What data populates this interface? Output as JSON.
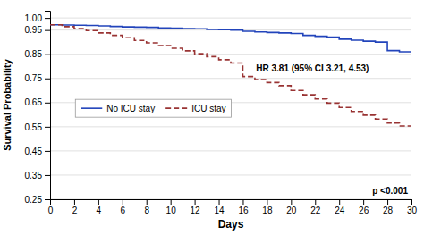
{
  "chart_data": {
    "type": "step",
    "xlabel": "Days",
    "ylabel": "Survival Probability",
    "x": [
      0,
      1,
      2,
      3,
      4,
      5,
      6,
      7,
      8,
      9,
      10,
      11,
      12,
      13,
      14,
      15,
      16,
      17,
      18,
      19,
      20,
      21,
      22,
      23,
      24,
      25,
      26,
      27,
      28,
      29,
      30
    ],
    "series": [
      {
        "name": "No ICU stay",
        "color": "#2244bb",
        "line_style": "solid",
        "values": [
          0.972,
          0.971,
          0.97,
          0.969,
          0.967,
          0.965,
          0.963,
          0.962,
          0.961,
          0.959,
          0.958,
          0.956,
          0.955,
          0.953,
          0.952,
          0.95,
          0.945,
          0.942,
          0.94,
          0.938,
          0.936,
          0.928,
          0.924,
          0.921,
          0.912,
          0.908,
          0.904,
          0.9,
          0.865,
          0.86,
          0.835
        ]
      },
      {
        "name": "ICU stay",
        "color": "#993333",
        "line_style": "dashed",
        "values": [
          0.972,
          0.964,
          0.956,
          0.948,
          0.938,
          0.928,
          0.918,
          0.907,
          0.897,
          0.886,
          0.875,
          0.864,
          0.852,
          0.84,
          0.827,
          0.814,
          0.758,
          0.745,
          0.733,
          0.72,
          0.7,
          0.682,
          0.665,
          0.648,
          0.63,
          0.613,
          0.598,
          0.582,
          0.565,
          0.553,
          0.548
        ]
      }
    ],
    "xlim": [
      0,
      30
    ],
    "ylim": [
      0.25,
      1.03
    ],
    "xticks": [
      0,
      2,
      4,
      6,
      8,
      10,
      12,
      14,
      16,
      18,
      20,
      22,
      24,
      26,
      28,
      30
    ],
    "yticks": [
      0.25,
      0.35,
      0.45,
      0.55,
      0.65,
      0.75,
      0.85,
      0.95,
      {
        "value": 1.0,
        "label": "1.00"
      }
    ],
    "grid": "y",
    "legend": "left",
    "annotations": [
      "HR 3.81 (95% CI 3.21, 4.53)",
      "p <0.001"
    ]
  }
}
